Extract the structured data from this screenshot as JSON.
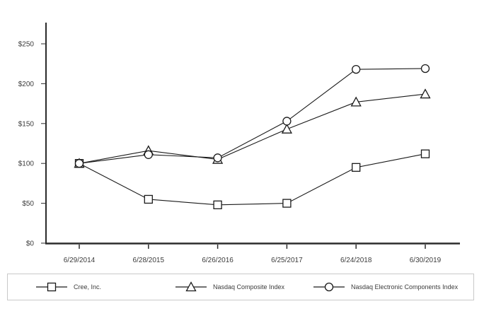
{
  "chart_data": {
    "type": "line",
    "categories": [
      "6/29/2014",
      "6/28/2015",
      "6/26/2016",
      "6/25/2017",
      "6/24/2018",
      "6/30/2019"
    ],
    "series": [
      {
        "name": "Cree, Inc.",
        "marker": "square",
        "values": [
          100,
          55,
          48,
          50,
          95,
          112
        ]
      },
      {
        "name": "Nasdaq Composite Index",
        "marker": "triangle",
        "values": [
          100,
          116,
          105,
          143,
          177,
          187
        ]
      },
      {
        "name": "Nasdaq Electronic Components Index",
        "marker": "circle",
        "values": [
          100,
          111,
          107,
          153,
          218,
          219
        ]
      }
    ],
    "y_ticks": [
      {
        "v": 0,
        "label": "$0"
      },
      {
        "v": 50,
        "label": "$50"
      },
      {
        "v": 100,
        "label": "$100"
      },
      {
        "v": 150,
        "label": "$150"
      },
      {
        "v": 200,
        "label": "$200"
      },
      {
        "v": 250,
        "label": "$250"
      }
    ],
    "ylim": [
      0,
      277
    ],
    "grid": false,
    "legend_position": "bottom",
    "line_color": "#1a1a1a",
    "marker_fill": "#ffffff",
    "axis_color": "#2b2b2b",
    "text_color": "#3c3c3c"
  }
}
